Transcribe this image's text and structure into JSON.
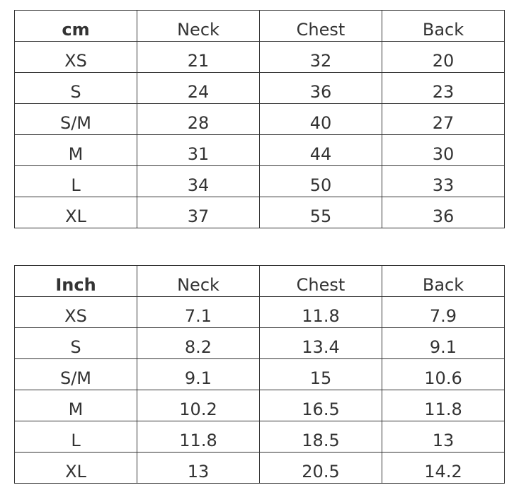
{
  "tables": [
    {
      "header": [
        "cm",
        "Neck",
        "Chest",
        "Back"
      ],
      "rows": [
        [
          "XS",
          "21",
          "32",
          "20"
        ],
        [
          "S",
          "24",
          "36",
          "23"
        ],
        [
          "S/M",
          "28",
          "40",
          "27"
        ],
        [
          "M",
          "31",
          "44",
          "30"
        ],
        [
          "L",
          "34",
          "50",
          "33"
        ],
        [
          "XL",
          "37",
          "55",
          "36"
        ]
      ]
    },
    {
      "header": [
        "Inch",
        "Neck",
        "Chest",
        "Back"
      ],
      "rows": [
        [
          "XS",
          "7.1",
          "11.8",
          "7.9"
        ],
        [
          "S",
          "8.2",
          "13.4",
          "9.1"
        ],
        [
          "S/M",
          "9.1",
          "15",
          "10.6"
        ],
        [
          "M",
          "10.2",
          "16.5",
          "11.8"
        ],
        [
          "L",
          "11.8",
          "18.5",
          "13"
        ],
        [
          "XL",
          "13",
          "20.5",
          "14.2"
        ]
      ]
    }
  ]
}
